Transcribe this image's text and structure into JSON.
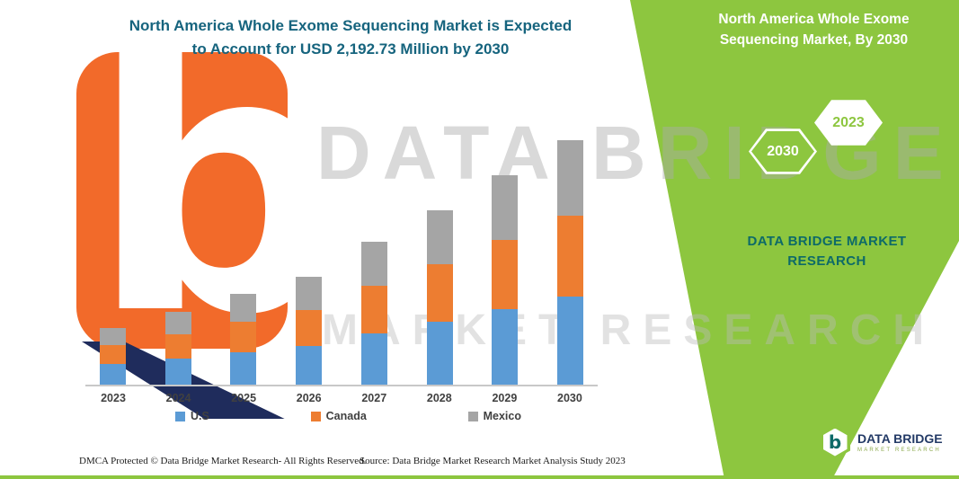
{
  "page": {
    "title_line1": "North America Whole Exome Sequencing Market is Expected",
    "title_line2": "to Account for USD 2,192.73 Million by 2030"
  },
  "side_panel": {
    "title": "North America Whole Exome Sequencing Market, By 2030",
    "hexagons": [
      {
        "label": "2030"
      },
      {
        "label": "2023"
      }
    ],
    "brand_caption": "DATA BRIDGE MARKET RESEARCH"
  },
  "watermark": {
    "line1": "DATA BRIDGE",
    "line2": "MARKET RESEARCH"
  },
  "chart_data": {
    "type": "bar",
    "stacked": true,
    "title": "North America Whole Exome Sequencing Market is Expected to Account for USD 2,192.73 Million by 2030",
    "unit": "USD Million",
    "categories": [
      "2023",
      "2024",
      "2025",
      "2026",
      "2027",
      "2028",
      "2029",
      "2030"
    ],
    "series": [
      {
        "name": "U.S",
        "color": "#5b9bd5",
        "values": [
          183,
          235,
          293,
          348,
          461,
          563,
          676,
          789.38
        ]
      },
      {
        "name": "Canada",
        "color": "#ed7d31",
        "values": [
          168,
          215,
          269,
          319,
          423,
          516,
          620,
          723.6
        ]
      },
      {
        "name": "Mexico",
        "color": "#a5a5a5",
        "values": [
          157,
          203,
          252,
          300,
          397,
          484,
          582,
          679.75
        ]
      }
    ],
    "totals": [
      508,
      653,
      814,
      967,
      1281,
      1563,
      1878,
      2192.73
    ],
    "ylim": [
      0,
      2300
    ],
    "xlabel": "",
    "ylabel": "",
    "grid": false,
    "legend_position": "bottom"
  },
  "footer": {
    "left": "DMCA Protected © Data Bridge Market Research-  All Rights Reserved.",
    "right": "Source: Data Bridge Market Research  Market Analysis Study 2023"
  },
  "corner_logo": {
    "icon_letter": "b",
    "name": "DATA BRIDGE",
    "sub": "MARKET RESEARCH"
  },
  "colors": {
    "accent_green": "#8dc63f",
    "title_teal": "#16647e",
    "caption_teal": "#0d6a68",
    "logo_orange": "#f26a2a",
    "logo_navy": "#1f2c5c"
  }
}
